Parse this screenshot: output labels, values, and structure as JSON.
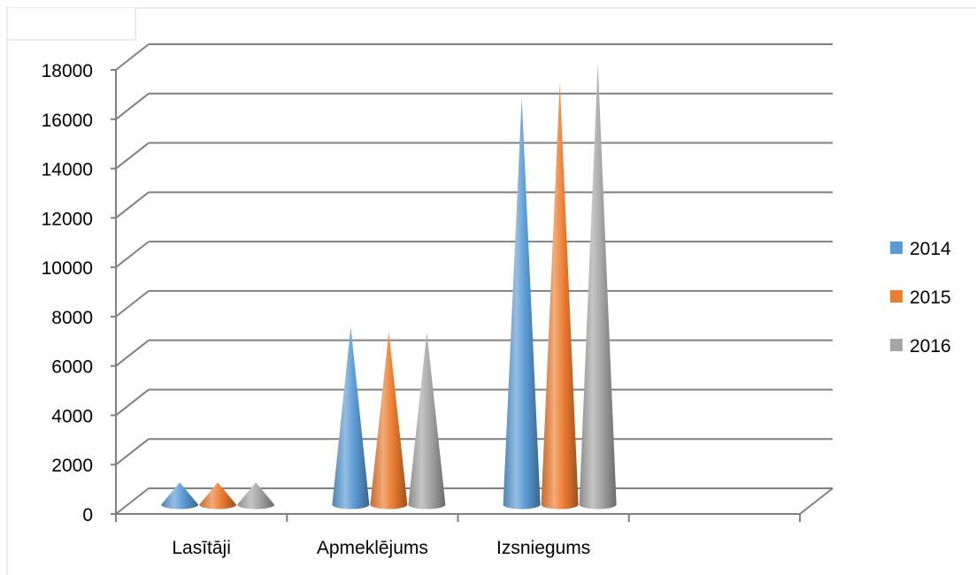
{
  "chart_data": {
    "type": "bar",
    "style": "3d-cone",
    "categories": [
      "Lasītāji",
      "Apmeklējums",
      "Izsniegums"
    ],
    "series": [
      {
        "name": "2014",
        "color": "#5B9BD5",
        "values": [
          900,
          7200,
          16500
        ]
      },
      {
        "name": "2015",
        "color": "#ED7D31",
        "values": [
          900,
          7000,
          17100
        ]
      },
      {
        "name": "2016",
        "color": "#A5A5A5",
        "values": [
          900,
          7000,
          17900
        ]
      }
    ],
    "title": "",
    "xlabel": "",
    "ylabel": "",
    "ylim": [
      0,
      18000
    ],
    "yticks": [
      0,
      2000,
      4000,
      6000,
      8000,
      10000,
      12000,
      14000,
      16000,
      18000
    ],
    "grid": true,
    "legend_position": "right"
  },
  "colors": {
    "grid": "#808080",
    "axis": "#808080",
    "border": "#d9d9d9"
  }
}
